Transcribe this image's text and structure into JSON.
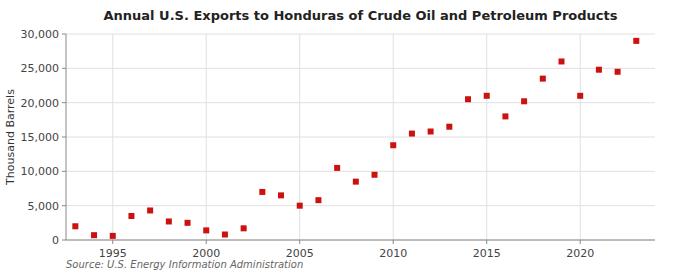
{
  "chart_data": {
    "type": "scatter",
    "title": "Annual U.S. Exports to Honduras of Crude Oil and Petroleum Products",
    "ylabel": "Thousand Barrels",
    "annotation": "Source: U.S. Energy Information Administration",
    "x": [
      1993,
      1994,
      1995,
      1996,
      1997,
      1998,
      1999,
      2000,
      2001,
      2002,
      2003,
      2004,
      2005,
      2006,
      2007,
      2008,
      2009,
      2010,
      2011,
      2012,
      2013,
      2014,
      2015,
      2016,
      2017,
      2018,
      2019,
      2020,
      2021,
      2022,
      2023
    ],
    "values": [
      2000,
      700,
      600,
      3500,
      4300,
      2700,
      2500,
      1400,
      800,
      1700,
      7000,
      6500,
      5000,
      5800,
      10500,
      8500,
      9500,
      13800,
      15500,
      15800,
      16500,
      20500,
      21000,
      18000,
      20200,
      23500,
      26000,
      21000,
      24800,
      24500,
      29000
    ],
    "color": "#cc1111",
    "marker": "square",
    "xlim": [
      1992.5,
      2024
    ],
    "xticks": [
      1995,
      2000,
      2005,
      2010,
      2015,
      2020
    ],
    "ylim": [
      0,
      30000
    ],
    "yticks": [
      0,
      {
        "value": 5000,
        "label": "5,000"
      },
      {
        "value": 10000,
        "label": "10,000"
      },
      {
        "value": 15000,
        "label": "15,000"
      },
      {
        "value": 20000,
        "label": "20,000"
      },
      {
        "value": 25000,
        "label": "25,000"
      },
      {
        "value": 30000,
        "label": "30,000"
      }
    ],
    "grid": true
  }
}
